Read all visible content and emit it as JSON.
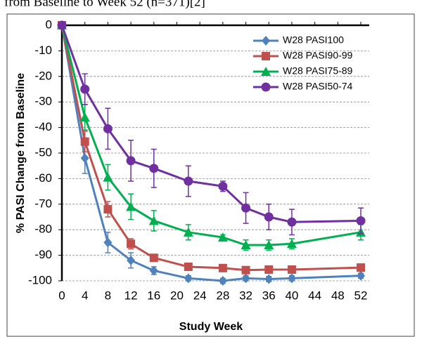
{
  "header_text": "from Baseline to Week 52 (n=371)[2]",
  "chart_data": {
    "type": "line",
    "xlabel": "Study Week",
    "ylabel": "% PASI Change from Baseline",
    "x": [
      0,
      4,
      8,
      12,
      16,
      22,
      28,
      32,
      36,
      40,
      52
    ],
    "xlim": [
      0,
      52
    ],
    "xticks": [
      0,
      4,
      8,
      12,
      16,
      20,
      24,
      28,
      32,
      36,
      40,
      44,
      48,
      52
    ],
    "ylim": [
      -100,
      0
    ],
    "yticks": [
      0,
      -10,
      -20,
      -30,
      -40,
      -50,
      -60,
      -70,
      -80,
      -90,
      -100
    ],
    "grid": true,
    "legend": "upper-right",
    "series": [
      {
        "name": "W28 PASI100",
        "color": "#4f81bd",
        "marker": "diamond",
        "values": [
          0,
          -52,
          -85,
          -92,
          -96,
          -99,
          -100,
          -99,
          -99.3,
          -99,
          -98
        ],
        "errors": [
          0,
          6,
          4,
          3,
          1.5,
          1,
          1,
          1,
          1,
          1,
          1
        ]
      },
      {
        "name": "W28 PASI90-99",
        "color": "#c0504d",
        "marker": "square",
        "values": [
          0,
          -45.5,
          -72,
          -85.5,
          -91,
          -94.5,
          -95,
          -95.8,
          -95.6,
          -95.6,
          -94.8
        ],
        "errors": [
          0,
          4,
          3,
          2,
          1,
          1,
          1,
          1,
          1,
          1,
          1
        ]
      },
      {
        "name": "W28 PASI75-89",
        "color": "#00b050",
        "marker": "triangle",
        "values": [
          0,
          -36,
          -59.5,
          -71,
          -76.5,
          -81,
          -83,
          -86,
          -86,
          -85.5,
          -81
        ],
        "errors": [
          0,
          5,
          5,
          5,
          4,
          3,
          1,
          2,
          2,
          2,
          3
        ]
      },
      {
        "name": "W28 PASI50-74",
        "color": "#7030a0",
        "marker": "circle",
        "values": [
          0,
          -25,
          -40.5,
          -53,
          -56,
          -61,
          -63,
          -71.5,
          -75,
          -77,
          -76.5
        ],
        "errors": [
          0,
          6,
          8,
          8,
          7.5,
          6,
          2,
          6,
          5,
          5,
          5
        ]
      }
    ]
  }
}
